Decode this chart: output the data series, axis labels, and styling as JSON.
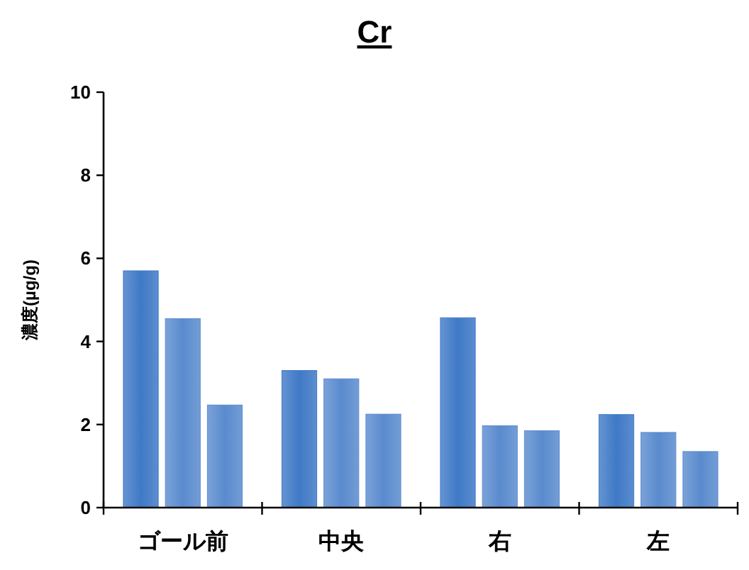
{
  "chart_data": {
    "type": "bar",
    "title": "Cr",
    "ylabel": "濃度(µg/g)",
    "categories": [
      "ゴール前",
      "中央",
      "右",
      "左"
    ],
    "series": [
      {
        "color": "#3f79c6",
        "values": [
          5.7,
          3.3,
          4.57,
          2.24
        ]
      },
      {
        "color": "#5a8bce",
        "values": [
          4.55,
          3.1,
          1.97,
          1.81
        ]
      },
      {
        "color": "#5a8bce",
        "values": [
          2.47,
          2.25,
          1.85,
          1.35
        ]
      }
    ],
    "ylim": [
      0,
      10
    ],
    "yticks": [
      0,
      2,
      4,
      6,
      8,
      10
    ]
  }
}
